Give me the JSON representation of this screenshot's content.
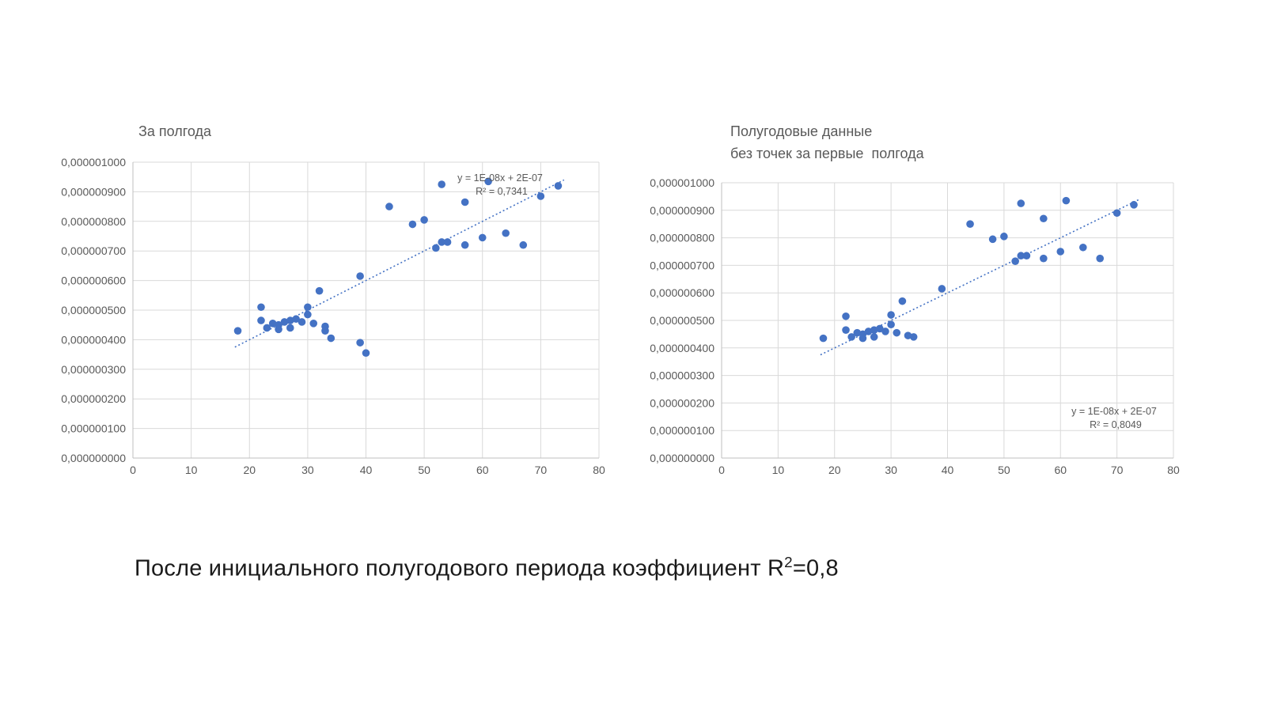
{
  "caption": {
    "prefix": "После инициального полугодового периода коэффициент R",
    "sup": "2",
    "suffix": "=0,8"
  },
  "colors": {
    "marker": "#4472c4",
    "trendline": "#4472c4",
    "gridline": "#d9d9d9",
    "axis_text": "#595959"
  },
  "chart_data": [
    {
      "type": "scatter",
      "title": "За полгода",
      "xlim": [
        0,
        80
      ],
      "ylim": [
        0,
        1e-06
      ],
      "grid": true,
      "x_ticks": [
        0,
        10,
        20,
        30,
        40,
        50,
        60,
        70,
        80
      ],
      "y_tick_labels": [
        "0,000001000",
        "0,000000900",
        "0,000000800",
        "0,000000700",
        "0,000000600",
        "0,000000500",
        "0,000000400",
        "0,000000300",
        "0,000000200",
        "0,000000100",
        "0,000000000"
      ],
      "points": [
        [
          18,
          4.3e-07
        ],
        [
          22,
          5.1e-07
        ],
        [
          22,
          4.65e-07
        ],
        [
          23,
          4.4e-07
        ],
        [
          24,
          4.55e-07
        ],
        [
          25,
          4.35e-07
        ],
        [
          25,
          4.5e-07
        ],
        [
          26,
          4.6e-07
        ],
        [
          27,
          4.4e-07
        ],
        [
          27,
          4.65e-07
        ],
        [
          28,
          4.7e-07
        ],
        [
          29,
          4.6e-07
        ],
        [
          30,
          5.1e-07
        ],
        [
          30,
          4.85e-07
        ],
        [
          31,
          4.55e-07
        ],
        [
          32,
          5.65e-07
        ],
        [
          33,
          4.45e-07
        ],
        [
          33,
          4.3e-07
        ],
        [
          34,
          4.05e-07
        ],
        [
          39,
          6.15e-07
        ],
        [
          39,
          3.9e-07
        ],
        [
          40,
          3.55e-07
        ],
        [
          44,
          8.5e-07
        ],
        [
          48,
          7.9e-07
        ],
        [
          50,
          8.05e-07
        ],
        [
          52,
          7.1e-07
        ],
        [
          53,
          9.25e-07
        ],
        [
          53,
          7.3e-07
        ],
        [
          54,
          7.3e-07
        ],
        [
          57,
          8.65e-07
        ],
        [
          57,
          7.2e-07
        ],
        [
          60,
          7.45e-07
        ],
        [
          61,
          9.35e-07
        ],
        [
          64,
          7.6e-07
        ],
        [
          67,
          7.2e-07
        ],
        [
          70,
          8.85e-07
        ],
        [
          73,
          9.2e-07
        ]
      ],
      "trendline": {
        "equation": "y = 1E-08x + 2E-07",
        "r2": "R² = 0,7341",
        "slope": 1e-08,
        "intercept": 2e-07,
        "x_start": 17.5,
        "x_end": 74,
        "label_pos": "top-right"
      }
    },
    {
      "type": "scatter",
      "title": "Полугодовые данные\nбез точек за первые  полгода",
      "xlim": [
        0,
        80
      ],
      "ylim": [
        0,
        1e-06
      ],
      "grid": true,
      "x_ticks": [
        0,
        10,
        20,
        30,
        40,
        50,
        60,
        70,
        80
      ],
      "y_tick_labels": [
        "0,000001000",
        "0,000000900",
        "0,000000800",
        "0,000000700",
        "0,000000600",
        "0,000000500",
        "0,000000400",
        "0,000000300",
        "0,000000200",
        "0,000000100",
        "0,000000000"
      ],
      "points": [
        [
          18,
          4.35e-07
        ],
        [
          22,
          5.15e-07
        ],
        [
          22,
          4.65e-07
        ],
        [
          23,
          4.4e-07
        ],
        [
          24,
          4.55e-07
        ],
        [
          25,
          4.35e-07
        ],
        [
          25,
          4.5e-07
        ],
        [
          26,
          4.6e-07
        ],
        [
          27,
          4.4e-07
        ],
        [
          27,
          4.65e-07
        ],
        [
          28,
          4.7e-07
        ],
        [
          29,
          4.6e-07
        ],
        [
          30,
          5.2e-07
        ],
        [
          30,
          4.85e-07
        ],
        [
          31,
          4.55e-07
        ],
        [
          32,
          5.7e-07
        ],
        [
          33,
          4.45e-07
        ],
        [
          34,
          4.4e-07
        ],
        [
          39,
          6.15e-07
        ],
        [
          44,
          8.5e-07
        ],
        [
          48,
          7.95e-07
        ],
        [
          50,
          8.05e-07
        ],
        [
          52,
          7.15e-07
        ],
        [
          53,
          9.25e-07
        ],
        [
          53,
          7.35e-07
        ],
        [
          54,
          7.35e-07
        ],
        [
          57,
          8.7e-07
        ],
        [
          57,
          7.25e-07
        ],
        [
          60,
          7.5e-07
        ],
        [
          61,
          9.35e-07
        ],
        [
          64,
          7.65e-07
        ],
        [
          67,
          7.25e-07
        ],
        [
          70,
          8.9e-07
        ],
        [
          73,
          9.2e-07
        ]
      ],
      "trendline": {
        "equation": "y = 1E-08x + 2E-07",
        "r2": "R² = 0,8049",
        "slope": 1e-08,
        "intercept": 2e-07,
        "x_start": 17.5,
        "x_end": 74,
        "label_pos": "bottom-right"
      }
    }
  ]
}
